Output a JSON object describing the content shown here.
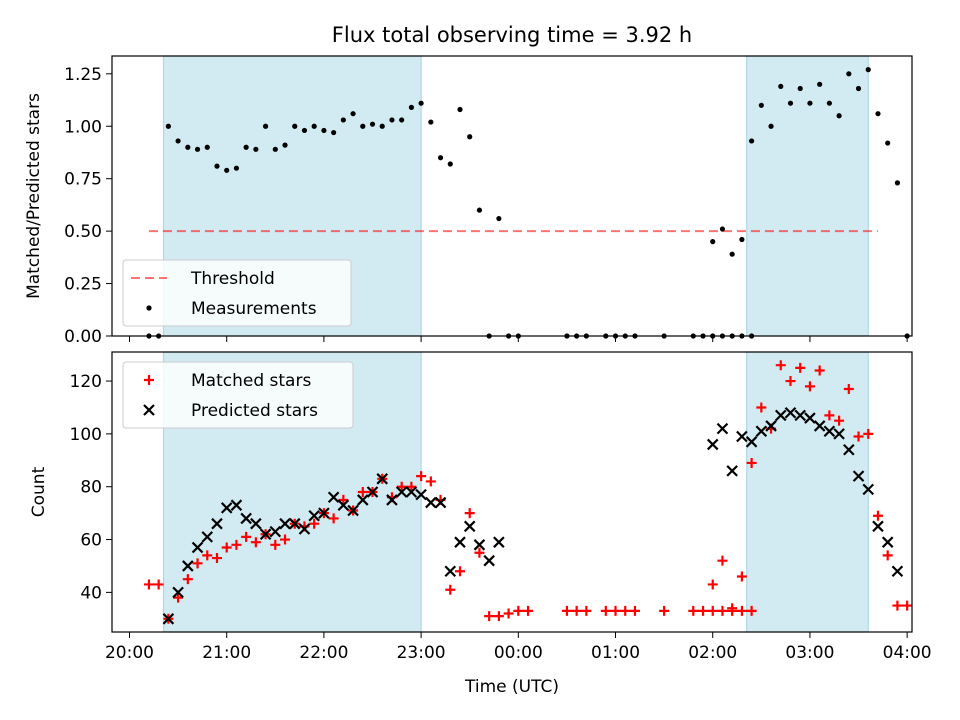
{
  "title": "Flux total observing time = 3.92 h",
  "colors": {
    "band": "#add8e6",
    "threshold": "#ff0000",
    "matched": "#ff0000",
    "predicted": "#000000",
    "measure": "#000000"
  },
  "chart_data": [
    {
      "type": "scatter",
      "ylabel": "Matched/Predicted stars",
      "ylim": [
        0,
        1.335
      ],
      "xlim_hours": [
        19.82,
        28.05
      ],
      "yticks": [
        0.0,
        0.25,
        0.5,
        0.75,
        1.0,
        1.25
      ],
      "ytick_labels": [
        "0.00",
        "0.25",
        "0.50",
        "0.75",
        "1.00",
        "1.25"
      ],
      "shaded_intervals": [
        [
          "20:21",
          "23:00"
        ],
        [
          "02:21",
          "03:36"
        ]
      ],
      "threshold": {
        "name": "Threshold",
        "value": 0.5,
        "x_range": [
          "20:12",
          "03:42"
        ]
      },
      "legend": {
        "position": "lower-left",
        "entries": [
          "Threshold",
          "Measurements"
        ]
      },
      "series": [
        {
          "name": "Measurements",
          "points": [
            [
              "20:12",
              0
            ],
            [
              "20:18",
              0
            ],
            [
              "20:24",
              1.0
            ],
            [
              "20:30",
              0.93
            ],
            [
              "20:36",
              0.9
            ],
            [
              "20:42",
              0.89
            ],
            [
              "20:48",
              0.9
            ],
            [
              "20:54",
              0.81
            ],
            [
              "21:00",
              0.79
            ],
            [
              "21:06",
              0.8
            ],
            [
              "21:12",
              0.9
            ],
            [
              "21:18",
              0.89
            ],
            [
              "21:24",
              1.0
            ],
            [
              "21:30",
              0.89
            ],
            [
              "21:36",
              0.91
            ],
            [
              "21:42",
              1.0
            ],
            [
              "21:48",
              0.98
            ],
            [
              "21:54",
              1.0
            ],
            [
              "22:00",
              0.98
            ],
            [
              "22:06",
              0.97
            ],
            [
              "22:12",
              1.03
            ],
            [
              "22:18",
              1.06
            ],
            [
              "22:24",
              1.0
            ],
            [
              "22:30",
              1.01
            ],
            [
              "22:36",
              1.0
            ],
            [
              "22:42",
              1.03
            ],
            [
              "22:48",
              1.03
            ],
            [
              "22:54",
              1.09
            ],
            [
              "23:00",
              1.11
            ],
            [
              "23:06",
              1.02
            ],
            [
              "23:12",
              0.85
            ],
            [
              "23:18",
              0.82
            ],
            [
              "23:24",
              1.08
            ],
            [
              "23:30",
              0.95
            ],
            [
              "23:36",
              0.6
            ],
            [
              "23:42",
              0
            ],
            [
              "23:48",
              0.56
            ],
            [
              "23:54",
              0
            ],
            [
              "00:00",
              0
            ],
            [
              "00:30",
              0
            ],
            [
              "00:36",
              0
            ],
            [
              "00:42",
              0
            ],
            [
              "00:54",
              0
            ],
            [
              "01:00",
              0
            ],
            [
              "01:06",
              0
            ],
            [
              "01:12",
              0
            ],
            [
              "01:30",
              0
            ],
            [
              "01:48",
              0
            ],
            [
              "01:54",
              0
            ],
            [
              "02:00",
              0
            ],
            [
              "02:06",
              0
            ],
            [
              "02:12",
              0
            ],
            [
              "02:18",
              0
            ],
            [
              "02:24",
              0
            ],
            [
              "02:00",
              0.45
            ],
            [
              "02:06",
              0.51
            ],
            [
              "02:12",
              0.39
            ],
            [
              "02:18",
              0.46
            ],
            [
              "02:24",
              0.93
            ],
            [
              "02:30",
              1.1
            ],
            [
              "02:36",
              1.0
            ],
            [
              "02:42",
              1.19
            ],
            [
              "02:48",
              1.11
            ],
            [
              "02:54",
              1.18
            ],
            [
              "03:00",
              1.11
            ],
            [
              "03:06",
              1.2
            ],
            [
              "03:12",
              1.11
            ],
            [
              "03:18",
              1.05
            ],
            [
              "03:24",
              1.25
            ],
            [
              "03:30",
              1.18
            ],
            [
              "03:36",
              1.27
            ],
            [
              "03:42",
              1.06
            ],
            [
              "03:48",
              0.92
            ],
            [
              "03:54",
              0.73
            ],
            [
              "04:00",
              0
            ]
          ]
        }
      ]
    },
    {
      "type": "scatter",
      "xlabel": "Time (UTC)",
      "ylabel": "Count",
      "ylim": [
        25,
        131
      ],
      "xlim_hours": [
        19.82,
        28.05
      ],
      "yticks": [
        40,
        60,
        80,
        100,
        120
      ],
      "ytick_labels": [
        "40",
        "60",
        "80",
        "100",
        "120"
      ],
      "xticks_hours": [
        20,
        21,
        22,
        23,
        24,
        25,
        26,
        27,
        28
      ],
      "xtick_labels": [
        "20:00",
        "21:00",
        "22:00",
        "23:00",
        "00:00",
        "01:00",
        "02:00",
        "03:00",
        "04:00"
      ],
      "shaded_intervals": [
        [
          "20:21",
          "23:00"
        ],
        [
          "02:21",
          "03:36"
        ]
      ],
      "legend": {
        "position": "top-left",
        "entries": [
          "Matched stars",
          "Predicted stars"
        ]
      },
      "series": [
        {
          "name": "Matched stars",
          "marker": "+",
          "points": [
            [
              "20:12",
              43
            ],
            [
              "20:18",
              43
            ],
            [
              "20:24",
              30
            ],
            [
              "20:30",
              38
            ],
            [
              "20:36",
              45
            ],
            [
              "20:42",
              51
            ],
            [
              "20:48",
              54
            ],
            [
              "20:54",
              53
            ],
            [
              "21:00",
              57
            ],
            [
              "21:06",
              58
            ],
            [
              "21:12",
              61
            ],
            [
              "21:18",
              59
            ],
            [
              "21:24",
              62
            ],
            [
              "21:30",
              58
            ],
            [
              "21:36",
              60
            ],
            [
              "21:42",
              66
            ],
            [
              "21:48",
              65
            ],
            [
              "21:54",
              66
            ],
            [
              "22:00",
              70
            ],
            [
              "22:06",
              68
            ],
            [
              "22:12",
              75
            ],
            [
              "22:18",
              71
            ],
            [
              "22:24",
              78
            ],
            [
              "22:30",
              78
            ],
            [
              "22:36",
              83
            ],
            [
              "22:42",
              76
            ],
            [
              "22:48",
              80
            ],
            [
              "22:54",
              80
            ],
            [
              "23:00",
              84
            ],
            [
              "23:06",
              82
            ],
            [
              "23:12",
              75
            ],
            [
              "23:18",
              41
            ],
            [
              "23:24",
              48
            ],
            [
              "23:30",
              70
            ],
            [
              "23:36",
              55
            ],
            [
              "23:42",
              31
            ],
            [
              "23:48",
              31
            ],
            [
              "23:54",
              32
            ],
            [
              "00:00",
              33
            ],
            [
              "00:06",
              33
            ],
            [
              "00:30",
              33
            ],
            [
              "00:36",
              33
            ],
            [
              "00:42",
              33
            ],
            [
              "00:54",
              33
            ],
            [
              "01:00",
              33
            ],
            [
              "01:06",
              33
            ],
            [
              "01:12",
              33
            ],
            [
              "01:30",
              33
            ],
            [
              "01:48",
              33
            ],
            [
              "01:54",
              33
            ],
            [
              "02:00",
              33
            ],
            [
              "02:06",
              33
            ],
            [
              "02:12",
              33
            ],
            [
              "02:18",
              33
            ],
            [
              "02:24",
              33
            ],
            [
              "02:00",
              43
            ],
            [
              "02:06",
              52
            ],
            [
              "02:12",
              34
            ],
            [
              "02:18",
              46
            ],
            [
              "02:24",
              89
            ],
            [
              "02:30",
              110
            ],
            [
              "02:36",
              102
            ],
            [
              "02:42",
              126
            ],
            [
              "02:48",
              120
            ],
            [
              "02:54",
              125
            ],
            [
              "03:00",
              118
            ],
            [
              "03:06",
              124
            ],
            [
              "03:12",
              107
            ],
            [
              "03:18",
              105
            ],
            [
              "03:24",
              117
            ],
            [
              "03:30",
              99
            ],
            [
              "03:36",
              100
            ],
            [
              "03:42",
              69
            ],
            [
              "03:48",
              54
            ],
            [
              "03:54",
              35
            ],
            [
              "04:00",
              35
            ]
          ]
        },
        {
          "name": "Predicted stars",
          "marker": "x",
          "points": [
            [
              "20:24",
              30
            ],
            [
              "20:30",
              40
            ],
            [
              "20:36",
              50
            ],
            [
              "20:42",
              57
            ],
            [
              "20:48",
              61
            ],
            [
              "20:54",
              66
            ],
            [
              "21:00",
              72
            ],
            [
              "21:06",
              73
            ],
            [
              "21:12",
              68
            ],
            [
              "21:18",
              66
            ],
            [
              "21:24",
              62
            ],
            [
              "21:30",
              63
            ],
            [
              "21:36",
              66
            ],
            [
              "21:42",
              66
            ],
            [
              "21:48",
              64
            ],
            [
              "21:54",
              69
            ],
            [
              "22:00",
              70
            ],
            [
              "22:06",
              76
            ],
            [
              "22:12",
              73
            ],
            [
              "22:18",
              71
            ],
            [
              "22:24",
              75
            ],
            [
              "22:30",
              78
            ],
            [
              "22:36",
              83
            ],
            [
              "22:42",
              75
            ],
            [
              "22:48",
              78
            ],
            [
              "22:54",
              78
            ],
            [
              "23:00",
              77
            ],
            [
              "23:06",
              74
            ],
            [
              "23:12",
              74
            ],
            [
              "23:18",
              48
            ],
            [
              "23:24",
              59
            ],
            [
              "23:30",
              65
            ],
            [
              "23:36",
              58
            ],
            [
              "23:42",
              52
            ],
            [
              "23:48",
              59
            ],
            [
              "02:00",
              96
            ],
            [
              "02:06",
              102
            ],
            [
              "02:12",
              86
            ],
            [
              "02:18",
              99
            ],
            [
              "02:24",
              97
            ],
            [
              "02:30",
              101
            ],
            [
              "02:36",
              103
            ],
            [
              "02:42",
              107
            ],
            [
              "02:48",
              108
            ],
            [
              "02:54",
              107
            ],
            [
              "03:00",
              106
            ],
            [
              "03:06",
              103
            ],
            [
              "03:12",
              101
            ],
            [
              "03:18",
              100
            ],
            [
              "03:24",
              94
            ],
            [
              "03:30",
              84
            ],
            [
              "03:36",
              79
            ],
            [
              "03:42",
              65
            ],
            [
              "03:48",
              59
            ],
            [
              "03:54",
              48
            ]
          ]
        }
      ]
    }
  ]
}
